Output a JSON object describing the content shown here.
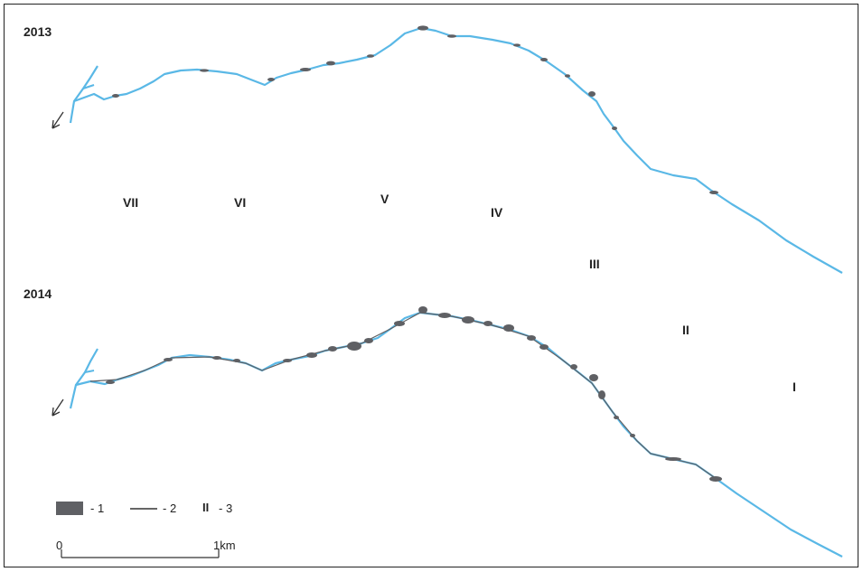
{
  "panels": [
    {
      "year": "2013"
    },
    {
      "year": "2014"
    }
  ],
  "sections": [
    "VII",
    "VI",
    "V",
    "IV",
    "III",
    "II",
    "I"
  ],
  "legend": {
    "item1": "- 1",
    "item2": "- 2",
    "item3_symbol": "II",
    "item3": "- 3"
  },
  "scale": {
    "start": "0",
    "end": "1km"
  },
  "colors": {
    "river": "#5ab8e6",
    "bank_deposit": "#5f6064",
    "text": "#222222"
  }
}
